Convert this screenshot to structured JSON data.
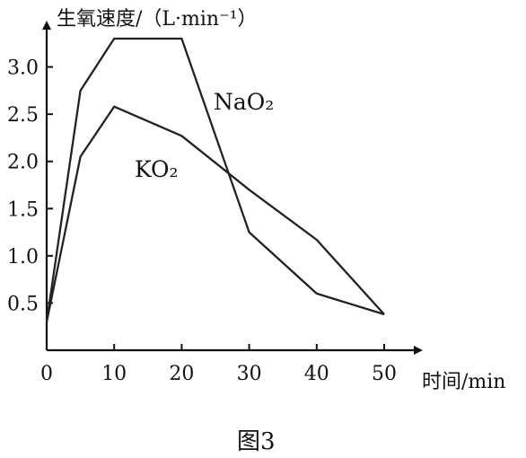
{
  "chart_data": {
    "type": "line",
    "title": "图3",
    "ylabel": "生氧速度/（L·min⁻¹）",
    "xlabel": "时间/min",
    "xlim": [
      0,
      50
    ],
    "ylim": [
      0,
      3.5
    ],
    "x_ticks": [
      0,
      10,
      20,
      30,
      40,
      50
    ],
    "y_ticks": [
      0.5,
      1.0,
      1.5,
      2.0,
      2.5,
      3.0
    ],
    "x_tick_labels": [
      "0",
      "10",
      "20",
      "30",
      "40",
      "50"
    ],
    "y_tick_labels": [
      "0.5",
      "1.0",
      "1.5",
      "2.0",
      "2.5",
      "3.0"
    ],
    "grid": false,
    "series": [
      {
        "name": "NaO₂",
        "x": [
          0,
          5,
          10,
          20,
          30,
          40,
          50
        ],
        "y": [
          0.3,
          2.75,
          3.3,
          3.3,
          1.25,
          0.6,
          0.38
        ]
      },
      {
        "name": "KO₂",
        "x": [
          0,
          5,
          10,
          20,
          30,
          40,
          50
        ],
        "y": [
          0.3,
          2.05,
          2.58,
          2.27,
          1.7,
          1.17,
          0.38
        ]
      }
    ]
  }
}
